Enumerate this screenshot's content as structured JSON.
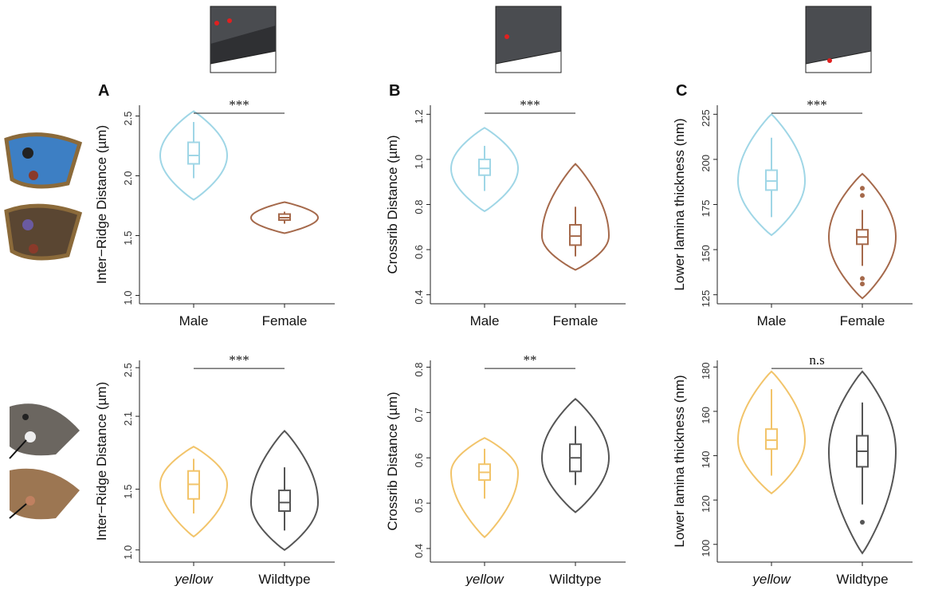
{
  "chart_data": [
    {
      "type": "violin",
      "panel": "A",
      "ylabel": "Inter−Ridge Distance (µm)",
      "categories": [
        "Male",
        "Female"
      ],
      "category_style": [
        "normal",
        "normal"
      ],
      "significance": "***",
      "ylim": [
        0.93,
        2.59
      ],
      "yticks": [
        {
          "value": 1,
          "label": "1.0"
        },
        1.5,
        {
          "value": 2,
          "label": "2.0"
        },
        2.5
      ],
      "series": [
        {
          "color": "#9fd6e6",
          "violin": [
            1.8,
            2.54
          ],
          "whiskers": [
            1.98,
            2.45
          ],
          "box": [
            2.1,
            2.17,
            2.28
          ],
          "outliers": []
        },
        {
          "color": "#a5694b",
          "violin": [
            1.52,
            1.78
          ],
          "whiskers": [
            1.6,
            1.7
          ],
          "box": [
            1.63,
            1.65,
            1.68
          ],
          "outliers": []
        }
      ]
    },
    {
      "type": "violin",
      "panel": "B",
      "ylabel": "Crossrib Distance (µm)",
      "categories": [
        "Male",
        "Female"
      ],
      "category_style": [
        "normal",
        "normal"
      ],
      "significance": "***",
      "ylim": [
        0.36,
        1.24
      ],
      "yticks": [
        0.4,
        0.6,
        0.8,
        {
          "value": 1,
          "label": "1.0"
        },
        1.2
      ],
      "series": [
        {
          "color": "#9fd6e6",
          "violin": [
            0.77,
            1.14
          ],
          "whiskers": [
            0.86,
            1.06
          ],
          "box": [
            0.93,
            0.96,
            1.0
          ],
          "outliers": []
        },
        {
          "color": "#a5694b",
          "violin": [
            0.51,
            0.98
          ],
          "whiskers": [
            0.57,
            0.79
          ],
          "box": [
            0.62,
            0.66,
            0.71
          ],
          "outliers": []
        }
      ]
    },
    {
      "type": "violin",
      "panel": "C",
      "ylabel": "Lower lamina thickness (nm)",
      "categories": [
        "Male",
        "Female"
      ],
      "category_style": [
        "normal",
        "normal"
      ],
      "significance": "***",
      "ylim": [
        120,
        230
      ],
      "yticks": [
        125,
        150,
        175,
        200,
        225
      ],
      "series": [
        {
          "color": "#9fd6e6",
          "violin": [
            158,
            225
          ],
          "whiskers": [
            168,
            212
          ],
          "box": [
            183,
            188,
            194
          ],
          "outliers": []
        },
        {
          "color": "#a5694b",
          "violin": [
            123,
            192
          ],
          "whiskers": [
            141,
            172
          ],
          "box": [
            153,
            157,
            161
          ],
          "outliers": [
            131,
            134,
            180,
            184
          ]
        }
      ]
    },
    {
      "type": "violin",
      "ylabel": "Inter−Ridge Distance (µm)",
      "categories": [
        "yellow",
        "Wildtype"
      ],
      "category_style": [
        "italic",
        "normal"
      ],
      "significance": "***",
      "ylim": [
        0.9,
        2.56
      ],
      "yticks": [
        {
          "value": 1,
          "label": "1.0"
        },
        1.5,
        2.1,
        2.5
      ],
      "series": [
        {
          "color": "#f2c46a",
          "violin": [
            1.11,
            1.85
          ],
          "whiskers": [
            1.3,
            1.75
          ],
          "box": [
            1.42,
            1.54,
            1.65
          ],
          "outliers": []
        },
        {
          "color": "#555555",
          "violin": [
            1.0,
            1.98
          ],
          "whiskers": [
            1.16,
            1.68
          ],
          "box": [
            1.32,
            1.39,
            1.49
          ],
          "outliers": []
        }
      ]
    },
    {
      "type": "violin",
      "ylabel": "Crossrib Distance (µm)",
      "categories": [
        "yellow",
        "Wildtype"
      ],
      "category_style": [
        "italic",
        "normal"
      ],
      "significance": "**",
      "ylim": [
        0.37,
        0.815
      ],
      "yticks": [
        0.4,
        0.5,
        0.6,
        0.7,
        0.8
      ],
      "series": [
        {
          "color": "#f2c46a",
          "violin": [
            0.425,
            0.644
          ],
          "whiskers": [
            0.51,
            0.62
          ],
          "box": [
            0.551,
            0.568,
            0.586
          ],
          "outliers": []
        },
        {
          "color": "#555555",
          "violin": [
            0.48,
            0.73
          ],
          "whiskers": [
            0.54,
            0.67
          ],
          "box": [
            0.57,
            0.6,
            0.63
          ],
          "outliers": []
        }
      ]
    },
    {
      "type": "violin",
      "ylabel": "Lower lamina thickness (nm)",
      "categories": [
        "yellow",
        "Wildtype"
      ],
      "category_style": [
        "italic",
        "normal"
      ],
      "significance": "n.s",
      "ylim": [
        92,
        183
      ],
      "yticks": [
        100,
        120,
        140,
        160,
        180
      ],
      "series": [
        {
          "color": "#f2c46a",
          "violin": [
            123,
            178
          ],
          "whiskers": [
            131,
            170
          ],
          "box": [
            143,
            147,
            152
          ],
          "outliers": []
        },
        {
          "color": "#555555",
          "violin": [
            96,
            178
          ],
          "whiskers": [
            118,
            164
          ],
          "box": [
            135,
            142,
            149
          ],
          "outliers": [
            110
          ]
        }
      ]
    }
  ]
}
